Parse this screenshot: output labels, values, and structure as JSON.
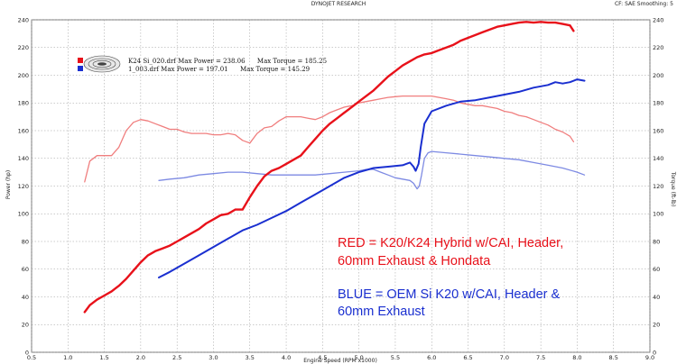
{
  "header": {
    "title": "DYNOJET RESEARCH",
    "settings": "CF: SAE  Smoothing: 5"
  },
  "legend": {
    "run1": "K24 Si_020.drf Max Power = 238.06      Max Torque = 185.25",
    "run2": "1_003.drf Max Power = 197.01      Max Torque = 145.29",
    "run1_color": "#e8111a",
    "run2_color": "#1a2fd0"
  },
  "annotations": {
    "red_line1": "RED = K20/K24 Hybrid w/CAI, Header,",
    "red_line2": "60mm Exhaust & Hondata",
    "blue_line1": "BLUE = OEM Si K20 w/CAI, Header &",
    "blue_line2": "60mm Exhaust",
    "red_color": "#e8111a",
    "blue_color": "#1a2fd0"
  },
  "chart_data": {
    "type": "line",
    "title": "DYNOJET RESEARCH",
    "xlabel": "Engine Speed (RPM x1000)",
    "ylabel_left": "Power (hp)",
    "ylabel_right": "Torque (ft-lb)",
    "xlim": [
      0.5,
      9.0
    ],
    "ylim": [
      0,
      240
    ],
    "x_ticks": [
      "0.5",
      "1.0",
      "1.5",
      "2.0",
      "2.5",
      "3.0",
      "3.5",
      "4.0",
      "4.5",
      "5.0",
      "5.5",
      "6.0",
      "6.5",
      "7.0",
      "7.5",
      "8.0",
      "8.5",
      "9.0"
    ],
    "y_ticks": [
      "0",
      "20",
      "40",
      "60",
      "80",
      "100",
      "120",
      "140",
      "160",
      "180",
      "200",
      "220",
      "240"
    ],
    "grid": true,
    "series": [
      {
        "name": "K24 Si_020.drf Power",
        "color": "#e8111a",
        "width": 2.4,
        "x": [
          1.23,
          1.3,
          1.4,
          1.5,
          1.6,
          1.7,
          1.8,
          1.9,
          2.0,
          2.1,
          2.2,
          2.3,
          2.4,
          2.5,
          2.6,
          2.7,
          2.8,
          2.9,
          3.0,
          3.1,
          3.2,
          3.3,
          3.4,
          3.5,
          3.6,
          3.7,
          3.8,
          3.9,
          4.0,
          4.1,
          4.2,
          4.3,
          4.4,
          4.5,
          4.6,
          4.7,
          4.8,
          4.9,
          5.0,
          5.1,
          5.2,
          5.3,
          5.4,
          5.5,
          5.6,
          5.7,
          5.8,
          5.9,
          6.0,
          6.1,
          6.2,
          6.3,
          6.4,
          6.5,
          6.6,
          6.7,
          6.8,
          6.9,
          7.0,
          7.1,
          7.2,
          7.3,
          7.4,
          7.5,
          7.6,
          7.7,
          7.8,
          7.9,
          7.95
        ],
        "y": [
          29,
          34,
          38,
          41,
          44,
          48,
          53,
          59,
          65,
          70,
          73,
          75,
          77,
          80,
          83,
          86,
          89,
          93,
          96,
          99,
          100,
          103,
          103,
          112,
          120,
          127,
          131,
          133,
          136,
          139,
          142,
          148,
          154,
          160,
          165,
          169,
          173,
          177,
          181,
          185,
          189,
          194,
          199,
          203,
          207,
          210,
          213,
          215,
          216,
          218,
          220,
          222,
          225,
          227,
          229,
          231,
          233,
          235,
          236,
          237,
          238,
          238.5,
          238,
          238.5,
          238,
          238,
          237,
          236,
          232
        ]
      },
      {
        "name": "K24 Si_020.drf Torque",
        "color": "#f07e7e",
        "width": 1.3,
        "x": [
          1.23,
          1.3,
          1.4,
          1.5,
          1.6,
          1.7,
          1.8,
          1.9,
          2.0,
          2.1,
          2.2,
          2.3,
          2.4,
          2.5,
          2.6,
          2.7,
          2.8,
          2.9,
          3.0,
          3.1,
          3.2,
          3.3,
          3.4,
          3.5,
          3.6,
          3.7,
          3.8,
          3.9,
          4.0,
          4.1,
          4.2,
          4.3,
          4.4,
          4.5,
          4.6,
          4.7,
          4.8,
          4.9,
          5.0,
          5.1,
          5.2,
          5.3,
          5.4,
          5.5,
          5.6,
          5.7,
          5.8,
          5.9,
          6.0,
          6.1,
          6.2,
          6.3,
          6.4,
          6.5,
          6.6,
          6.7,
          6.8,
          6.9,
          7.0,
          7.1,
          7.2,
          7.3,
          7.4,
          7.5,
          7.6,
          7.7,
          7.8,
          7.9,
          7.95
        ],
        "y": [
          123,
          138,
          142,
          142,
          142,
          148,
          160,
          166,
          168,
          167,
          165,
          163,
          161,
          161,
          159,
          158,
          158,
          158,
          157,
          157,
          158,
          157,
          153,
          151,
          158,
          162,
          163,
          167,
          170,
          170,
          170,
          169,
          168,
          170,
          173,
          175,
          177,
          178,
          180,
          181,
          182,
          183,
          184,
          184.5,
          185,
          185,
          185,
          185,
          185,
          184,
          183,
          182,
          180,
          179,
          178,
          178,
          177,
          176,
          174,
          173,
          171,
          170,
          168,
          166,
          164,
          161,
          159,
          156,
          152
        ]
      },
      {
        "name": "1_003.drf Power",
        "color": "#1a2fd0",
        "width": 2.0,
        "x": [
          2.25,
          2.4,
          2.6,
          2.8,
          3.0,
          3.2,
          3.4,
          3.6,
          3.8,
          4.0,
          4.2,
          4.4,
          4.6,
          4.8,
          5.0,
          5.2,
          5.4,
          5.6,
          5.7,
          5.75,
          5.78,
          5.82,
          5.85,
          5.9,
          6.0,
          6.2,
          6.4,
          6.6,
          6.8,
          7.0,
          7.2,
          7.4,
          7.6,
          7.7,
          7.8,
          7.9,
          8.0,
          8.1
        ],
        "y": [
          54,
          58,
          64,
          70,
          76,
          82,
          88,
          92,
          97,
          102,
          108,
          114,
          120,
          126,
          130,
          133,
          134,
          135,
          137,
          134,
          131,
          136,
          148,
          165,
          174,
          178,
          181,
          182,
          184,
          186,
          188,
          191,
          193,
          195,
          194,
          195,
          197,
          196
        ]
      },
      {
        "name": "1_003.drf Torque",
        "color": "#7d8ae3",
        "width": 1.3,
        "x": [
          2.25,
          2.4,
          2.6,
          2.8,
          3.0,
          3.2,
          3.4,
          3.6,
          3.8,
          4.0,
          4.2,
          4.4,
          4.6,
          4.8,
          5.0,
          5.1,
          5.2,
          5.3,
          5.4,
          5.5,
          5.6,
          5.7,
          5.75,
          5.8,
          5.83,
          5.86,
          5.9,
          5.95,
          6.0,
          6.2,
          6.4,
          6.6,
          6.8,
          7.0,
          7.2,
          7.4,
          7.6,
          7.8,
          8.0,
          8.1
        ],
        "y": [
          124,
          125,
          126,
          128,
          129,
          130,
          130,
          129,
          128,
          128,
          128,
          128,
          129,
          130,
          131,
          132,
          132,
          130,
          128,
          126,
          125,
          124,
          122,
          118,
          120,
          128,
          140,
          144,
          145,
          144,
          143,
          142,
          141,
          140,
          139,
          137,
          135,
          133,
          130,
          128
        ]
      }
    ]
  }
}
